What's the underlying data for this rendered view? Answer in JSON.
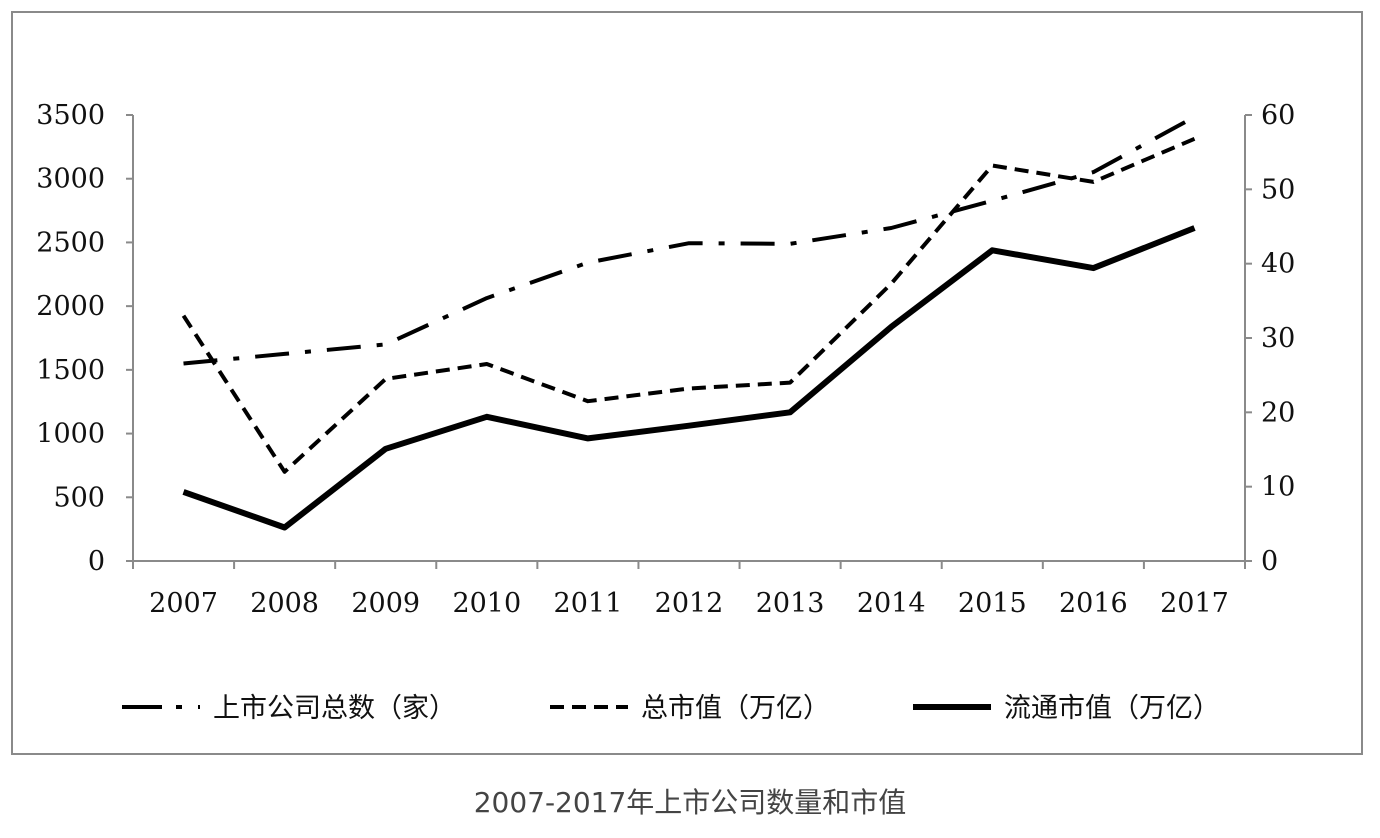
{
  "chart_data": {
    "type": "line",
    "title": "",
    "categories": [
      "2007",
      "2008",
      "2009",
      "2010",
      "2011",
      "2012",
      "2013",
      "2014",
      "2015",
      "2016",
      "2017"
    ],
    "y_left": {
      "ticks": [
        "0",
        "500",
        "1000",
        "1500",
        "2000",
        "2500",
        "3000",
        "3500"
      ],
      "range": [
        0,
        3500
      ]
    },
    "y_right": {
      "ticks": [
        "0",
        "10",
        "20",
        "30",
        "40",
        "50",
        "60"
      ],
      "range": [
        0,
        60
      ]
    },
    "grid": false,
    "legend_position": "bottom",
    "series": [
      {
        "name": "上市公司总数（家）",
        "axis": "left",
        "style": "dashdot",
        "values": [
          1550,
          1625,
          1700,
          2063,
          2342,
          2494,
          2489,
          2613,
          2827,
          3052,
          3485
        ]
      },
      {
        "name": "总市值（万亿）",
        "axis": "right",
        "style": "dashed",
        "values": [
          33,
          12,
          24.5,
          26.5,
          21.5,
          23.2,
          24,
          37.3,
          53.2,
          51,
          56.8
        ]
      },
      {
        "name": "流通市值（万亿）",
        "axis": "right",
        "style": "solid",
        "values": [
          9.3,
          4.5,
          15.1,
          19.4,
          16.5,
          18.2,
          20,
          31.5,
          41.8,
          39.4,
          44.8
        ]
      }
    ]
  },
  "caption": "2007-2017年上市公司数量和市值"
}
